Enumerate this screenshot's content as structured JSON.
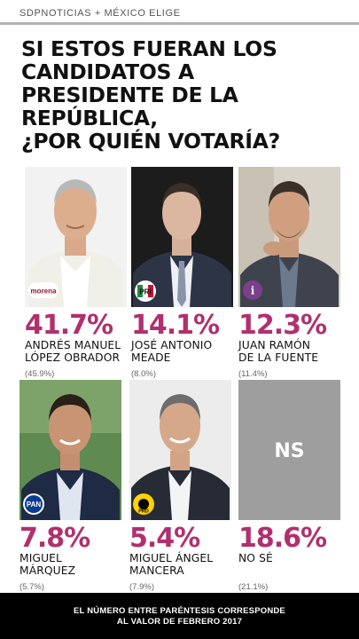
{
  "header": {
    "brand": "SDPNOTICIAS + MÉXICO ELIGE"
  },
  "headline": {
    "lines": [
      "SI ESTOS FUERAN LOS",
      "CANDIDATOS A",
      "PRESIDENTE DE LA",
      "REPÚBLICA,",
      "¿POR QUIÉN VOTARÍA?"
    ]
  },
  "chart_data": {
    "type": "table",
    "title": "SI ESTOS FUERAN LOS CANDIDATOS A PRESIDENTE DE LA REPÚBLICA, ¿POR QUIÉN VOTARÍA?",
    "candidates": [
      {
        "pct": "41.7%",
        "value": 41.7,
        "name1": "ANDRÉS MANUEL",
        "name2": "LÓPEZ OBRADOR",
        "prev": "(45.9%)",
        "prev_value": 45.9,
        "party": "morena"
      },
      {
        "pct": "14.1%",
        "value": 14.1,
        "name1": "JOSÉ ANTONIO",
        "name2": "MEADE",
        "prev": "(8.0%)",
        "prev_value": 8.0,
        "party": "PRI"
      },
      {
        "pct": "12.3%",
        "value": 12.3,
        "name1": "JUAN RAMÓN",
        "name2": "DE LA FUENTE",
        "prev": "(11.4%)",
        "prev_value": 11.4,
        "party": "i"
      },
      {
        "pct": "7.8%",
        "value": 7.8,
        "name1": "MIGUEL",
        "name2": "MÁRQUEZ",
        "prev": "(5.7%)",
        "prev_value": 5.7,
        "party": "PAN"
      },
      {
        "pct": "5.4%",
        "value": 5.4,
        "name1": "MIGUEL ÁNGEL",
        "name2": "MANCERA",
        "prev": "(7.9%)",
        "prev_value": 7.9,
        "party": "PRD"
      },
      {
        "pct": "18.6%",
        "value": 18.6,
        "name1": "NO SÉ",
        "name2": "",
        "prev": "(21.1%)",
        "prev_value": 21.1,
        "party": "NS"
      }
    ]
  },
  "ns_box": {
    "label": "NS"
  },
  "footer": {
    "line1": "EL NÚMERO ENTRE PARÉNTESIS CORRESPONDE",
    "line2": "AL VALOR DE FEBRERO 2017"
  },
  "colors": {
    "accent": "#b0306e",
    "footer_bg": "#000000",
    "ns_bg": "#9e9e9e"
  }
}
